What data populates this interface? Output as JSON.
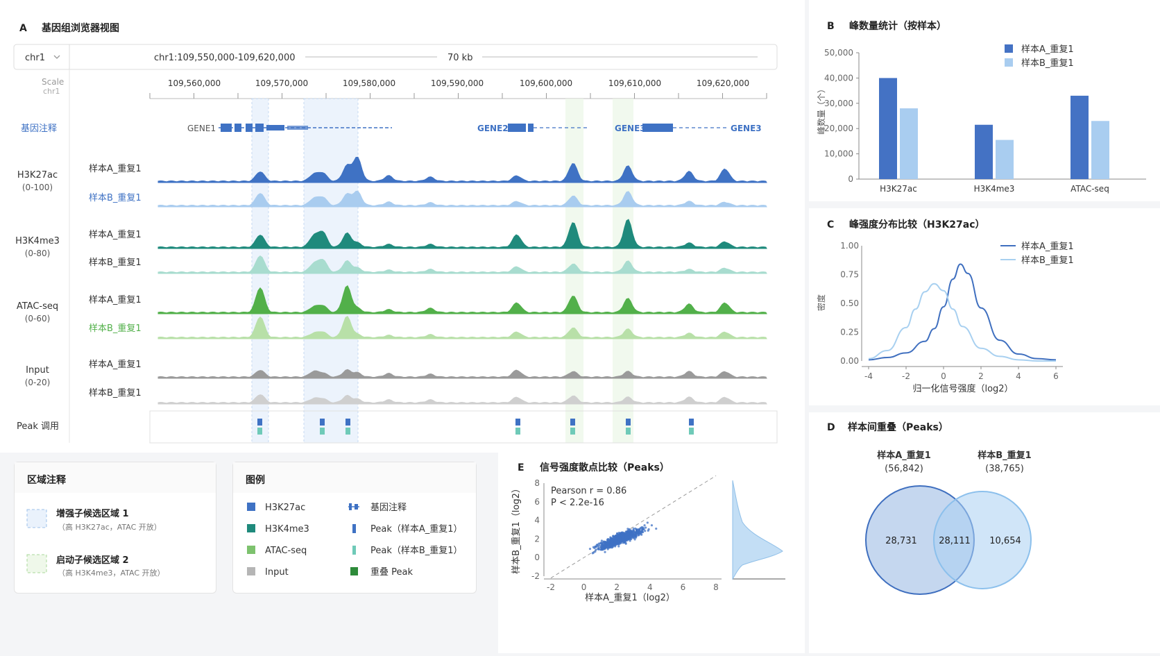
{
  "panel_a": {
    "letter": "A",
    "title": "基因组浏览器视图",
    "chrom_select": "chr1",
    "locus": "chr1:109,550,000-109,620,000",
    "span": "70 kb",
    "scale_label": "Scale",
    "scale_chr": "chr1",
    "ruler_ticks": [
      "109,560,000",
      "109,570,000",
      "109,580,000",
      "109,590,000",
      "109,600,000",
      "109,610,000",
      "109,620,000"
    ],
    "gene_track_label": "基因注释",
    "genes": [
      "GENE1",
      "GENE2",
      "GENE3",
      "GENE3"
    ],
    "tracks": [
      {
        "name": "H3K27ac",
        "range": "(0-100)",
        "rep_a": "样本A_重复1",
        "rep_b": "样本B_重复1"
      },
      {
        "name": "H3K4me3",
        "range": "(0-80)",
        "rep_a": "样本A_重复1",
        "rep_b": "样本B_重复1"
      },
      {
        "name": "ATAC-seq",
        "range": "(0-60)",
        "rep_a": "样本A_重复1",
        "rep_b": "样本B_重复1"
      },
      {
        "name": "Input",
        "range": "(0-20)",
        "rep_a": "样本A_重复1",
        "rep_b": "样本B_重复1"
      }
    ],
    "peak_label": "Peak 调用",
    "colors": {
      "h3k27ac": "#3f72c4",
      "h3k27ac_b": "#a9ccef",
      "h3k4me3": "#1f8a7c",
      "h3k4me3_b": "#a8dccf",
      "atac": "#52b04a",
      "atac_b": "#b8e0a8",
      "input": "#9a9a9a",
      "input_b": "#cfcfcf",
      "overlap": "#2e8b3a"
    }
  },
  "region_panel": {
    "title": "区域注释",
    "items": [
      {
        "name": "增强子候选区域 1",
        "desc": "（高 H3K27ac，ATAC 开放）"
      },
      {
        "name": "启动子候选区域 2",
        "desc": "（高 H3K4me3，ATAC 开放）"
      }
    ]
  },
  "legend_panel": {
    "title": "图例",
    "items": [
      "H3K27ac",
      "H3K4me3",
      "ATAC-seq",
      "Input",
      "基因注释",
      "Peak（样本A_重复1）",
      "Peak（样本B_重复1）",
      "重叠 Peak"
    ]
  },
  "chart_data": [
    {
      "id": "B",
      "letter": "B",
      "type": "bar",
      "title": "峰数量统计（按样本）",
      "ylabel": "峰数量（个）",
      "categories": [
        "H3K27ac",
        "H3K4me3",
        "ATAC-seq"
      ],
      "series": [
        {
          "name": "样本A_重复1",
          "values": [
            40000,
            21500,
            33000
          ],
          "color": "#4472c4"
        },
        {
          "name": "样本B_重复1",
          "values": [
            28000,
            15500,
            23000
          ],
          "color": "#a9cdf0"
        }
      ],
      "ylim": [
        0,
        50000
      ],
      "yticks": [
        "0",
        "10,000",
        "20,000",
        "30,000",
        "40,000",
        "50,000"
      ],
      "legend": "top-right"
    },
    {
      "id": "C",
      "letter": "C",
      "type": "line",
      "title": "峰强度分布比较（H3K27ac）",
      "xlabel": "归一化信号强度（log2）",
      "ylabel": "密度",
      "xlim": [
        -4,
        6
      ],
      "ylim": [
        0,
        1
      ],
      "xticks": [
        "-4",
        "-2",
        "0",
        "2",
        "4",
        "6"
      ],
      "yticks": [
        "0.00",
        "0.25",
        "0.50",
        "0.75",
        "1.00"
      ],
      "series": [
        {
          "name": "样本A_重复1",
          "color": "#3f6fbf",
          "x": [
            -4,
            -3,
            -2,
            -1,
            -0.5,
            0,
            0.5,
            0.9,
            1.3,
            2,
            3,
            4,
            5,
            6
          ],
          "y": [
            0.01,
            0.03,
            0.07,
            0.17,
            0.28,
            0.47,
            0.71,
            0.84,
            0.76,
            0.46,
            0.18,
            0.06,
            0.02,
            0.01
          ]
        },
        {
          "name": "样本B_重复1",
          "color": "#a8d0f0",
          "x": [
            -4,
            -3,
            -2,
            -1.5,
            -1,
            -0.5,
            0,
            0.5,
            1,
            2,
            3,
            4,
            5,
            6
          ],
          "y": [
            0.02,
            0.09,
            0.29,
            0.45,
            0.6,
            0.67,
            0.61,
            0.45,
            0.3,
            0.11,
            0.04,
            0.01,
            0.0,
            0.0
          ]
        }
      ],
      "legend": "top-right"
    },
    {
      "id": "D",
      "letter": "D",
      "type": "venn",
      "title": "样本间重叠（Peaks）",
      "sets": [
        {
          "name": "样本A_重复1",
          "total": "(56,842)"
        },
        {
          "name": "样本B_重复1",
          "total": "(38,765)"
        }
      ],
      "regions": [
        "28,731",
        "28,111",
        "10,654"
      ]
    },
    {
      "id": "E",
      "letter": "E",
      "type": "scatter",
      "title": "信号强度散点比较（Peaks）",
      "xlabel": "样本A_重复1（log2）",
      "ylabel": "样本B_重复1（log2）",
      "xlim": [
        -2,
        8
      ],
      "ylim": [
        -2,
        8
      ],
      "xticks": [
        "-2",
        "0",
        "2",
        "4",
        "6",
        "8"
      ],
      "yticks": [
        "-2",
        "0",
        "2",
        "4",
        "6",
        "8"
      ],
      "annotation": [
        "Pearson  r = 0.86",
        "P < 2.2e-16"
      ]
    }
  ]
}
